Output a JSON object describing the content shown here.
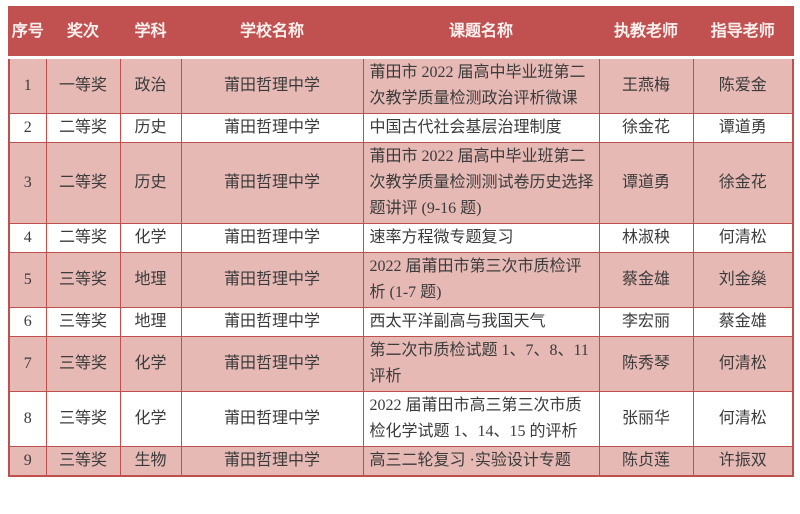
{
  "colors": {
    "header_bg": "#c05150",
    "header_text": "#fbf1ef",
    "row_pink": "#e6b9b5",
    "row_white": "#ffffff",
    "grid": "#c0504d",
    "text": "#3b3b3b"
  },
  "table": {
    "columns": [
      {
        "key": "num",
        "label": "序号"
      },
      {
        "key": "award",
        "label": "奖次"
      },
      {
        "key": "subject",
        "label": "学科"
      },
      {
        "key": "school",
        "label": "学校名称"
      },
      {
        "key": "topic",
        "label": "课题名称"
      },
      {
        "key": "teacher",
        "label": "执教老师"
      },
      {
        "key": "advisor",
        "label": "指导老师"
      }
    ],
    "rows": [
      {
        "num": "1",
        "award": "一等奖",
        "subject": "政治",
        "school": "莆田哲理中学",
        "topic": "莆田市 2022 届高中毕业班第二次教学质量检测政治评析微课",
        "teacher": "王燕梅",
        "advisor": "陈爱金"
      },
      {
        "num": "2",
        "award": "二等奖",
        "subject": "历史",
        "school": "莆田哲理中学",
        "topic": "中国古代社会基层治理制度",
        "teacher": "徐金花",
        "advisor": "谭道勇"
      },
      {
        "num": "3",
        "award": "二等奖",
        "subject": "历史",
        "school": "莆田哲理中学",
        "topic": "莆田市 2022 届高中毕业班第二次教学质量检测测试卷历史选择题讲评 (9-16 题)",
        "teacher": "谭道勇",
        "advisor": "徐金花"
      },
      {
        "num": "4",
        "award": "二等奖",
        "subject": "化学",
        "school": "莆田哲理中学",
        "topic": "速率方程微专题复习",
        "teacher": "林淑秧",
        "advisor": "何清松"
      },
      {
        "num": "5",
        "award": "三等奖",
        "subject": "地理",
        "school": "莆田哲理中学",
        "topic": "2022 届莆田市第三次市质检评析 (1-7 题)",
        "teacher": "蔡金雄",
        "advisor": "刘金燊"
      },
      {
        "num": "6",
        "award": "三等奖",
        "subject": "地理",
        "school": "莆田哲理中学",
        "topic": "西太平洋副高与我国天气",
        "teacher": "李宏丽",
        "advisor": "蔡金雄"
      },
      {
        "num": "7",
        "award": "三等奖",
        "subject": "化学",
        "school": "莆田哲理中学",
        "topic": "第二次市质检试题 1、7、8、11 评析",
        "teacher": "陈秀琴",
        "advisor": "何清松"
      },
      {
        "num": "8",
        "award": "三等奖",
        "subject": "化学",
        "school": "莆田哲理中学",
        "topic": "2022 届莆田市高三第三次市质检化学试题 1、14、15 的评析",
        "teacher": "张丽华",
        "advisor": "何清松"
      },
      {
        "num": "9",
        "award": "三等奖",
        "subject": "生物",
        "school": "莆田哲理中学",
        "topic": "高三二轮复习 ·实验设计专题",
        "teacher": "陈贞莲",
        "advisor": "许振双"
      }
    ]
  }
}
